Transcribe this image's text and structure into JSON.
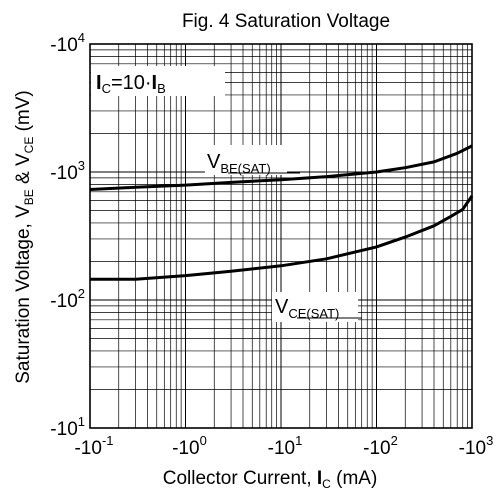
{
  "chart_data": {
    "type": "line",
    "title": "Fig. 4 Saturation Voltage",
    "xlabel": {
      "main": "Collector Current, ",
      "var": "I",
      "sub": "C",
      "unit": " (mA)"
    },
    "ylabel": {
      "p1": "Saturation Voltage, V",
      "s1": "BE",
      "p2": " & V",
      "s2": "CE",
      "p3": " (mV)"
    },
    "x_scale": "log",
    "y_scale": "log",
    "xlim": [
      0.1,
      1000
    ],
    "ylim": [
      10,
      10000
    ],
    "grid": true,
    "x_ticks": [
      {
        "value": 0.1,
        "base": "-10",
        "exp": "-1"
      },
      {
        "value": 1,
        "base": "-10",
        "exp": "0"
      },
      {
        "value": 10,
        "base": "-10",
        "exp": "1"
      },
      {
        "value": 100,
        "base": "-10",
        "exp": "2"
      },
      {
        "value": 1000,
        "base": "-10",
        "exp": "3"
      }
    ],
    "y_ticks": [
      {
        "value": 10,
        "base": "-10",
        "exp": "1"
      },
      {
        "value": 100,
        "base": "-10",
        "exp": "2"
      },
      {
        "value": 1000,
        "base": "-10",
        "exp": "3"
      },
      {
        "value": 10000,
        "base": "-10",
        "exp": "4"
      }
    ],
    "condition": {
      "a": "I",
      "as": "C",
      "mid": "=10·",
      "b": "I",
      "bs": "B"
    },
    "series": [
      {
        "name": "VBE(SAT)",
        "label": {
          "main": "V",
          "sub": "BE(SAT)"
        },
        "x": [
          0.1,
          0.3,
          1,
          3,
          10,
          30,
          100,
          200,
          400,
          700,
          1000
        ],
        "y": [
          730,
          760,
          790,
          830,
          870,
          920,
          1000,
          1080,
          1200,
          1400,
          1600
        ]
      },
      {
        "name": "VCE(SAT)",
        "label": {
          "main": "V",
          "sub": "CE(SAT)"
        },
        "x": [
          0.1,
          0.3,
          1,
          3,
          10,
          30,
          100,
          200,
          400,
          600,
          800,
          1000
        ],
        "y": [
          145,
          145,
          155,
          168,
          185,
          210,
          260,
          310,
          380,
          450,
          510,
          650
        ]
      }
    ]
  }
}
